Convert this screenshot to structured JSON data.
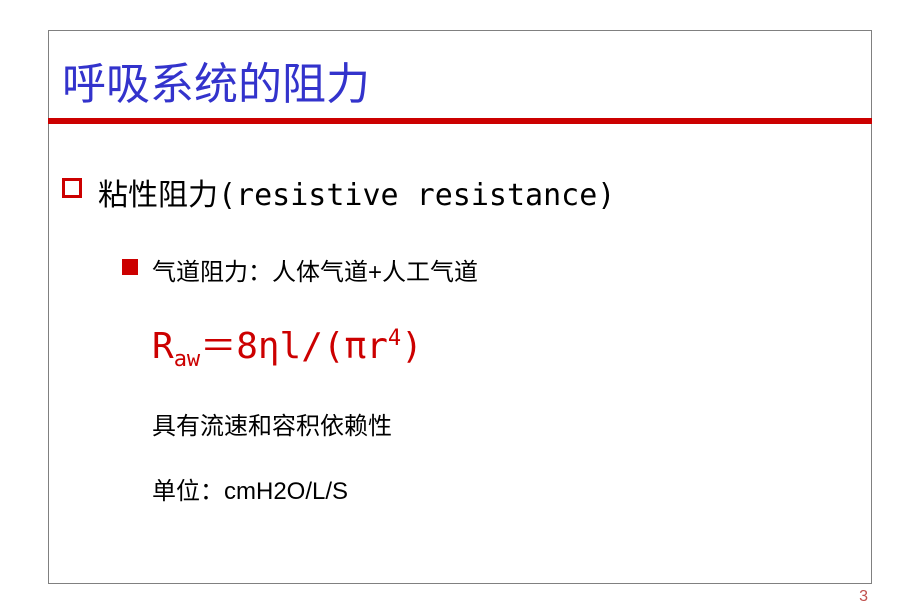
{
  "title": "呼吸系统的阻力",
  "colors": {
    "title_color": "#3333cc",
    "accent_color": "#cc0000",
    "border_color": "#808080",
    "text_color": "#000000",
    "pagenum_color": "#c0504d",
    "background": "#ffffff"
  },
  "typography": {
    "title_fontsize": 44,
    "l1_fontsize": 30,
    "l2_fontsize": 24,
    "formula_fontsize": 36,
    "pagenum_fontsize": 16
  },
  "bullet_l1": {
    "text": "粘性阻力(resistive resistance)"
  },
  "bullet_l2": {
    "text": "气道阻力：人体气道+人工气道"
  },
  "formula": {
    "parts": {
      "r_letter": "R",
      "subscript": "aw",
      "equals": "＝8ηl/(πr",
      "superscript": "4",
      "close": ")"
    }
  },
  "desc1": "具有流速和容积依赖性",
  "desc2": "单位：cmH2O/L/S",
  "page_number": "3"
}
